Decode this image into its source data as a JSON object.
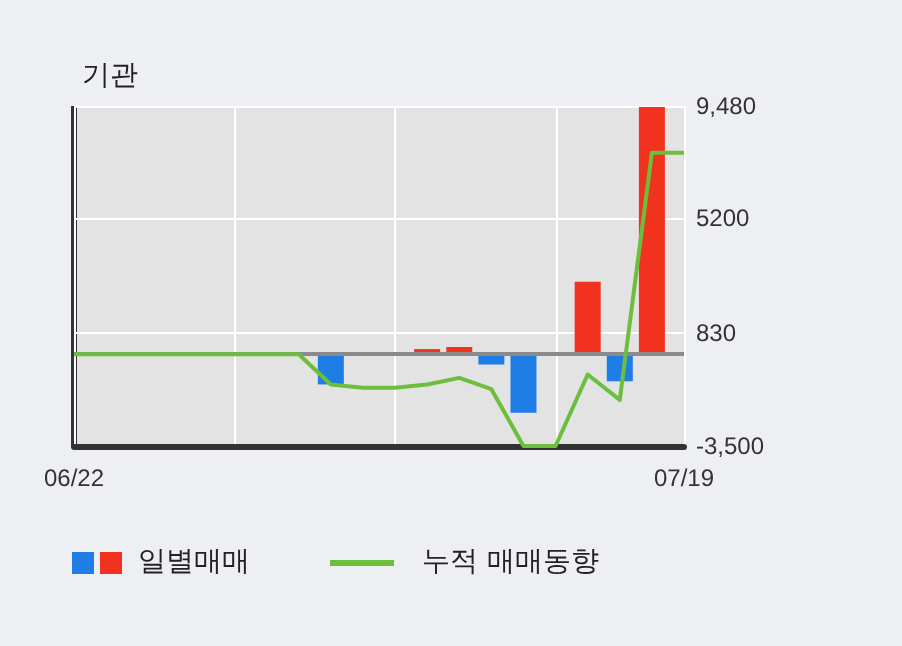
{
  "chart_data": {
    "type": "bar",
    "title": "기관",
    "categories": [
      "06/22",
      null,
      null,
      null,
      null,
      null,
      null,
      null,
      null,
      null,
      null,
      null,
      null,
      null,
      null,
      null,
      null,
      null,
      null,
      "07/19"
    ],
    "series": [
      {
        "name": "일별매매",
        "colors": [
          "#1f7de6",
          "#1f7de6",
          "#1f7de6",
          "#1f7de6",
          "#1f7de6",
          "#1f7de6",
          "#1f7de6",
          "#1f7de6",
          "#1f7de6",
          "#1f7de6",
          "#1f7de6",
          "#f0321e",
          "#f0321e",
          "#1f7de6",
          "#1f7de6",
          "#1f7de6",
          "#f0321e",
          "#1f7de6",
          "#f0321e",
          "#1f7de6"
        ],
        "values": [
          null,
          null,
          null,
          null,
          null,
          null,
          null,
          null,
          -1150,
          null,
          null,
          200,
          280,
          -390,
          -2230,
          null,
          2770,
          -1030,
          9440,
          null
        ]
      },
      {
        "name": "누적 매매동향",
        "type": "line",
        "color": "#6cbf3c",
        "values": [
          0,
          0,
          0,
          0,
          0,
          0,
          0,
          0,
          -1150,
          -1280,
          -1280,
          -1150,
          -900,
          -1330,
          -3500,
          -3500,
          -770,
          -1740,
          7700,
          7700
        ]
      }
    ],
    "ylim": [
      -3500,
      9480
    ],
    "yticks": [
      {
        "value": 9480,
        "label": "9,480"
      },
      {
        "value": 5200,
        "label": "5200"
      },
      {
        "value": 830,
        "label": "830"
      },
      {
        "value": -3500,
        "label": "-3,500"
      }
    ],
    "ref_lines": [
      {
        "axis": "y",
        "value": 0,
        "color": "#8a8a8a"
      }
    ],
    "grid": true,
    "legend": "bottom left",
    "marker": "none"
  }
}
